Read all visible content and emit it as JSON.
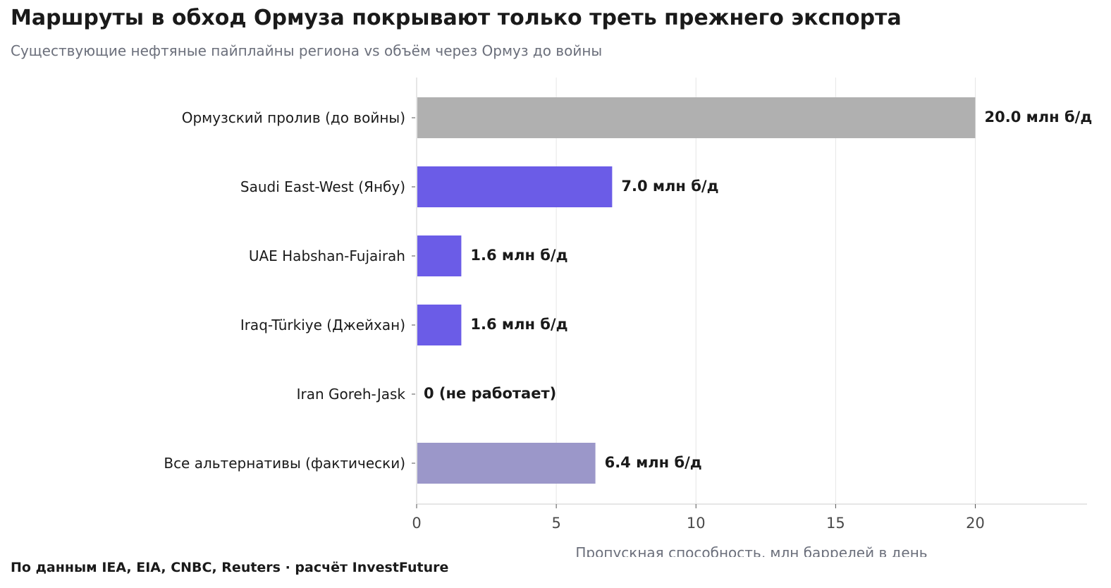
{
  "header": {
    "title": "Маршруты в обход Ормуза покрывают только треть прежнего экспорта",
    "subtitle": "Существующие нефтяные пайплайны региона vs объём через Ормуз до войны"
  },
  "footer": {
    "source": "По данным IEA, EIA, CNBC, Reuters · расчёт InvestFuture"
  },
  "chart_data": {
    "type": "bar",
    "orientation": "horizontal",
    "title": "Маршруты в обход Ормуза покрывают только треть прежнего экспорта",
    "subtitle": "Существующие нефтяные пайплайны региона vs объём через Ормуз до войны",
    "xlabel": "Пропускная способность, млн баррелей в день",
    "ylabel": "",
    "xlim": [
      0,
      24
    ],
    "xticks": [
      0,
      5,
      10,
      15,
      20
    ],
    "grid": "vertical",
    "categories": [
      "Ормузский пролив (до войны)",
      "Saudi East-West (Янбу)",
      "UAE Habshan-Fujairah",
      "Iraq-Türkiye (Джейхан)",
      "Iran Goreh-Jask",
      "Все альтернативы (фактически)"
    ],
    "values": [
      20.0,
      7.0,
      1.6,
      1.6,
      0,
      6.4
    ],
    "data_labels": [
      "20.0 млн б/д",
      "7.0 млн б/д",
      "1.6 млн б/д",
      "1.6 млн б/д",
      "0 (не работает)",
      "6.4 млн б/д"
    ],
    "colors": [
      "#b0b0b0",
      "#6b5ce7",
      "#6b5ce7",
      "#6b5ce7",
      "#6b5ce7",
      "#9b97c9"
    ]
  }
}
